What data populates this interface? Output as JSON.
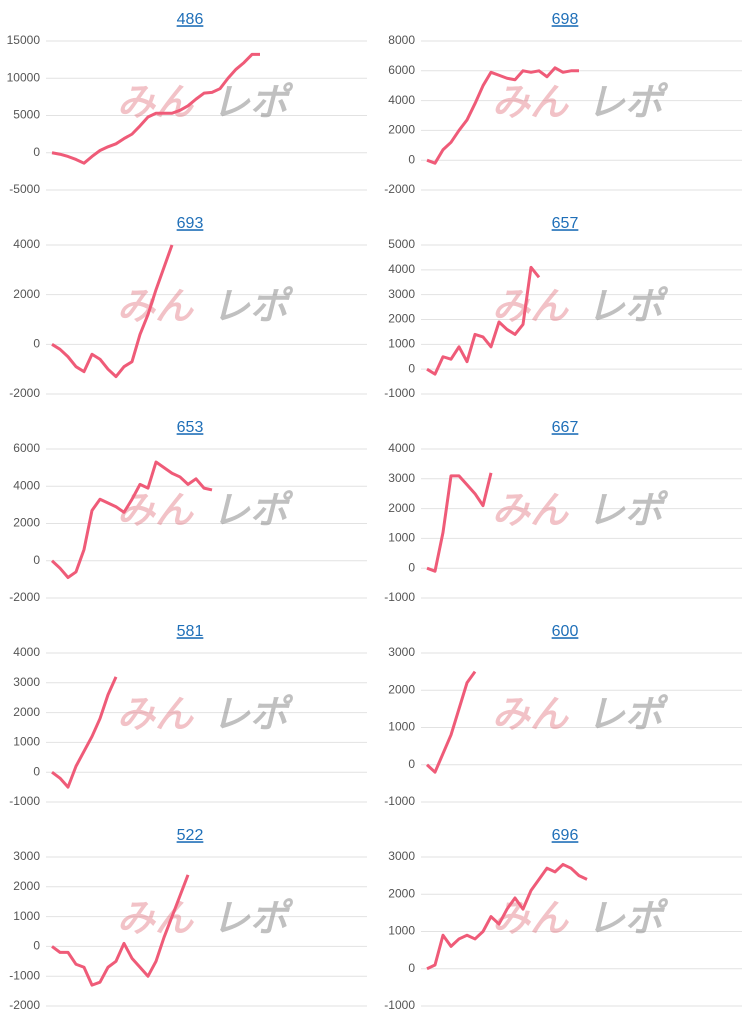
{
  "watermark": [
    "みん",
    "レポ"
  ],
  "chart_data": [
    {
      "type": "line",
      "title": "486",
      "color": "#ef5b78",
      "grid": true,
      "ylim": [
        -5000,
        15000
      ],
      "yticks": [
        -5000,
        0,
        5000,
        10000,
        15000
      ],
      "values": [
        0,
        -200,
        -500,
        -900,
        -1400,
        -500,
        300,
        800,
        1200,
        1900,
        2500,
        3600,
        4800,
        5300,
        5300,
        5300,
        5700,
        6300,
        7200,
        8000,
        8100,
        8600,
        10000,
        11200,
        12100,
        13200,
        13200
      ]
    },
    {
      "type": "line",
      "title": "698",
      "color": "#ef5b78",
      "grid": true,
      "ylim": [
        -2000,
        8000
      ],
      "yticks": [
        -2000,
        0,
        2000,
        4000,
        6000,
        8000
      ],
      "values": [
        0,
        -200,
        700,
        1200,
        2000,
        2700,
        3800,
        5000,
        5900,
        5700,
        5500,
        5400,
        6000,
        5900,
        6000,
        5600,
        6200,
        5900,
        6000,
        6000
      ]
    },
    {
      "type": "line",
      "title": "693",
      "color": "#ef5b78",
      "grid": true,
      "ylim": [
        -2000,
        4000
      ],
      "yticks": [
        -2000,
        0,
        2000,
        4000
      ],
      "values": [
        0,
        -200,
        -500,
        -900,
        -1100,
        -400,
        -600,
        -1000,
        -1300,
        -900,
        -700,
        400,
        1200,
        2200,
        3100,
        4000
      ]
    },
    {
      "type": "line",
      "title": "657",
      "color": "#ef5b78",
      "grid": true,
      "ylim": [
        -1000,
        5000
      ],
      "yticks": [
        -1000,
        0,
        1000,
        2000,
        3000,
        4000,
        5000
      ],
      "values": [
        0,
        -200,
        500,
        400,
        900,
        300,
        1400,
        1300,
        900,
        1900,
        1600,
        1400,
        1800,
        4100,
        3700
      ]
    },
    {
      "type": "line",
      "title": "653",
      "color": "#ef5b78",
      "grid": true,
      "ylim": [
        -2000,
        6000
      ],
      "yticks": [
        -2000,
        0,
        2000,
        4000,
        6000
      ],
      "values": [
        0,
        -400,
        -900,
        -600,
        600,
        2700,
        3300,
        3100,
        2900,
        2600,
        3300,
        4100,
        3900,
        5300,
        5000,
        4700,
        4500,
        4100,
        4400,
        3900,
        3800
      ]
    },
    {
      "type": "line",
      "title": "667",
      "color": "#ef5b78",
      "grid": true,
      "ylim": [
        -1000,
        4000
      ],
      "yticks": [
        -1000,
        0,
        1000,
        2000,
        3000,
        4000
      ],
      "values": [
        0,
        -100,
        1200,
        3100,
        3100,
        2800,
        2500,
        2100,
        3200
      ]
    },
    {
      "type": "line",
      "title": "581",
      "color": "#ef5b78",
      "grid": true,
      "ylim": [
        -1000,
        4000
      ],
      "yticks": [
        -1000,
        0,
        1000,
        2000,
        3000,
        4000
      ],
      "values": [
        0,
        -200,
        -500,
        200,
        700,
        1200,
        1800,
        2600,
        3200
      ]
    },
    {
      "type": "line",
      "title": "600",
      "color": "#ef5b78",
      "grid": true,
      "ylim": [
        -1000,
        3000
      ],
      "yticks": [
        -1000,
        0,
        1000,
        2000,
        3000
      ],
      "values": [
        0,
        -200,
        300,
        800,
        1500,
        2200,
        2500
      ]
    },
    {
      "type": "line",
      "title": "522",
      "color": "#ef5b78",
      "grid": true,
      "ylim": [
        -2000,
        3000
      ],
      "yticks": [
        -2000,
        -1000,
        0,
        1000,
        2000,
        3000
      ],
      "values": [
        0,
        -200,
        -200,
        -600,
        -700,
        -1300,
        -1200,
        -700,
        -500,
        100,
        -400,
        -700,
        -1000,
        -500,
        300,
        1000,
        1700,
        2400
      ]
    },
    {
      "type": "line",
      "title": "696",
      "color": "#ef5b78",
      "grid": true,
      "ylim": [
        -1000,
        3000
      ],
      "yticks": [
        -1000,
        0,
        1000,
        2000,
        3000
      ],
      "values": [
        0,
        100,
        900,
        600,
        800,
        900,
        800,
        1000,
        1400,
        1200,
        1600,
        1900,
        1600,
        2100,
        2400,
        2700,
        2600,
        2800,
        2700,
        2500,
        2400
      ]
    }
  ]
}
